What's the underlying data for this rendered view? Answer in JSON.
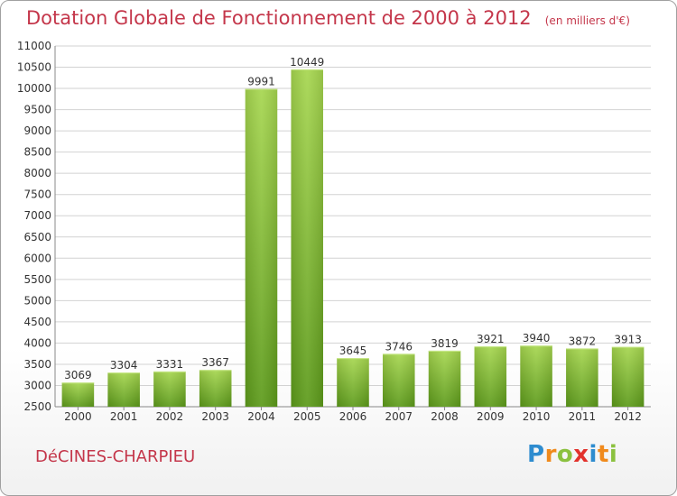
{
  "header": {
    "title": "Dotation Globale de Fonctionnement de 2000 à 2012",
    "subtitle": "(en milliers d'€)"
  },
  "town": "DéCINES-CHARPIEU",
  "logo": {
    "text": "Proxiti"
  },
  "colors": {
    "title": "#c4364a",
    "bar_light": "#9fd24a",
    "bar_dark": "#5f9e1c",
    "grid": "#cccccc"
  },
  "chart_data": {
    "type": "bar",
    "categories": [
      "2000",
      "2001",
      "2002",
      "2003",
      "2004",
      "2005",
      "2006",
      "2007",
      "2008",
      "2009",
      "2010",
      "2011",
      "2012"
    ],
    "values": [
      3069,
      3304,
      3331,
      3367,
      9991,
      10449,
      3645,
      3746,
      3819,
      3921,
      3940,
      3872,
      3913
    ],
    "ylim": [
      2500,
      11000
    ],
    "ytick_step": 500,
    "grid": true
  }
}
